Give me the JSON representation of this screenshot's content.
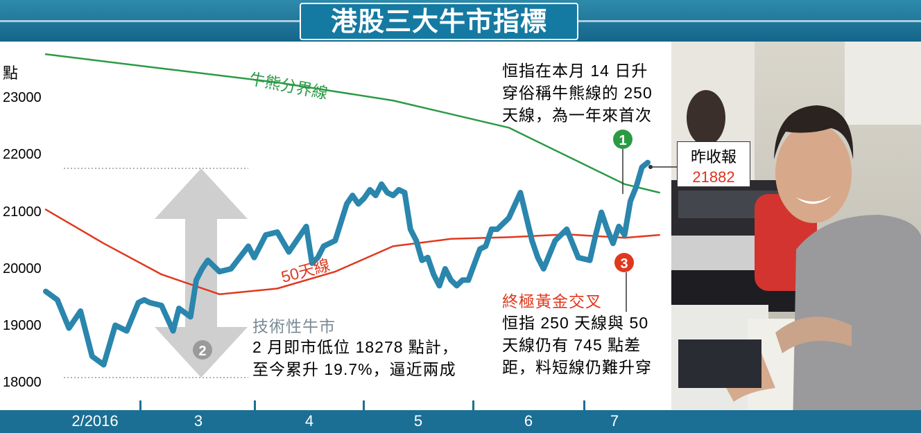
{
  "title": "港股三大牛市指標",
  "colors": {
    "index": "#2a86ad",
    "ma250": "#2b9a45",
    "ma50": "#e0381e",
    "band": "#1b6f94",
    "marker1": "#2b9a45",
    "marker3": "#e0381e",
    "arrow": "#cfcfcf",
    "marker2": "#9a9a9a"
  },
  "chart_data": {
    "type": "line",
    "y_unit": "點",
    "ylim": [
      17900,
      24000
    ],
    "yticks": [
      "23000",
      "22000",
      "21000",
      "20000",
      "19000",
      "18000"
    ],
    "x_categories": [
      "2/2016",
      "3",
      "4",
      "5",
      "6",
      "7"
    ],
    "grid": false,
    "series": [
      {
        "key": "index",
        "x": [
          0,
          2,
          4,
          6,
          8,
          10,
          12,
          14,
          16,
          17,
          18,
          20,
          22,
          23,
          25,
          26,
          27,
          28,
          30,
          32,
          35,
          36,
          38,
          40,
          42,
          45,
          46,
          47,
          48,
          50,
          52,
          53,
          54,
          55,
          56,
          57,
          58,
          59,
          60,
          61,
          62,
          63,
          64,
          65,
          66,
          67,
          68,
          69,
          70,
          71,
          72,
          73,
          75,
          76,
          77,
          78,
          80,
          82,
          84,
          85,
          86,
          88,
          90,
          92,
          94,
          95,
          96,
          97,
          98,
          99,
          100,
          101,
          102,
          103,
          104
        ],
        "values": [
          19600,
          19450,
          18950,
          19250,
          18450,
          18300,
          19000,
          18900,
          19400,
          19450,
          19400,
          19350,
          18900,
          19300,
          19150,
          19800,
          20000,
          20150,
          19950,
          20000,
          20400,
          20200,
          20600,
          20650,
          20300,
          20750,
          20100,
          20200,
          20400,
          20500,
          21150,
          21300,
          21150,
          21250,
          21400,
          21300,
          21500,
          21350,
          21300,
          21400,
          21350,
          20700,
          20500,
          20150,
          20200,
          19900,
          19700,
          20000,
          19800,
          19700,
          19800,
          19800,
          20350,
          20400,
          20700,
          20700,
          20900,
          21350,
          20500,
          20200,
          20000,
          20500,
          20700,
          20200,
          20150,
          20600,
          21000,
          20700,
          20450,
          20750,
          20600,
          21200,
          21450,
          21800,
          21882
        ]
      },
      {
        "key": "ma250",
        "name": "牛熊分界線",
        "x": [
          0,
          20,
          40,
          60,
          80,
          100,
          106
        ],
        "values": [
          23800,
          23550,
          23300,
          22980,
          22500,
          21500,
          21350
        ]
      },
      {
        "key": "ma50",
        "name": "50天線",
        "x": [
          0,
          10,
          20,
          30,
          40,
          50,
          60,
          70,
          80,
          90,
          100,
          106
        ],
        "values": [
          21050,
          20450,
          19900,
          19550,
          19650,
          19950,
          20400,
          20530,
          20560,
          20610,
          20550,
          20600
        ]
      }
    ],
    "reference_levels": [
      21900,
      18278
    ],
    "annotations": [
      {
        "id": "1",
        "title": "",
        "text": [
          "恒指在本月 14 日升",
          "穿俗稱牛熊線的 250",
          "天線，為一年來首次"
        ]
      },
      {
        "id": "2",
        "title": "技術性牛市",
        "text": [
          "2 月即市低位 18278 點計，",
          "至今累升 19.7%，逼近兩成"
        ]
      },
      {
        "id": "3",
        "title": "終極黃金交叉",
        "text": [
          "恒指 250 天線與 50",
          "天線仍有 745 點差",
          "距，料短線仍難升穿"
        ]
      }
    ],
    "last_close": {
      "label": "昨收報",
      "value": "21882"
    }
  }
}
